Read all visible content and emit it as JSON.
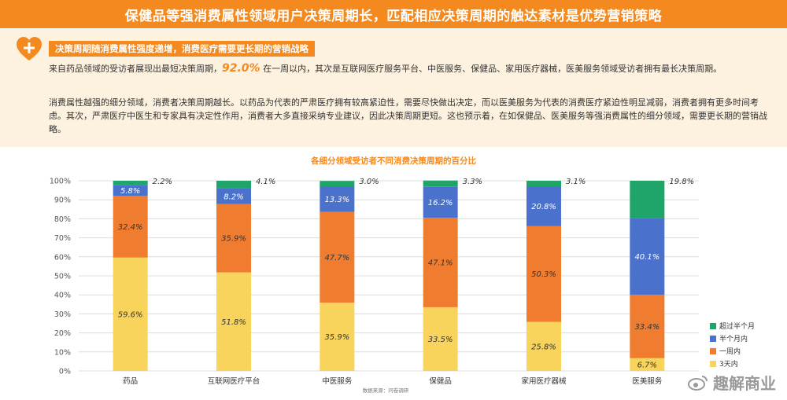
{
  "header": {
    "title": "保健品等强消费属性领域用户决策周期长，匹配相应决策周期的触达素材是优势营销策略"
  },
  "info": {
    "subtitle": "决策周期随消费属性强度递增，消费医疗需要更长期的营销战略",
    "p1_before": "来自药品领域的受访者展现出最短决策周期，",
    "p1_highlight": "92.0%",
    "p1_after": " 在一周以内，其次是互联网医疗服务平台、中医服务、保健品、家用医疗器械，医美服务领域受访者拥有最长决策周期。",
    "p2": "消费属性越强的细分领域，消费者决策周期越长。以药品为代表的严肃医疗拥有较高紧迫性，需要尽快做出决定，而以医美服务为代表的消费医疗紧迫性明显减弱，消费者拥有更多时间考虑。其次，严肃医疗中医生和专家具有决定性作用，消费者大多直接采纳专业建议，因此决策周期更短。这也预示着，在如保健品、医美服务等强消费属性的细分领域，需要更长期的营销战略。"
  },
  "footer": {
    "source": "数据来源：问卷调研",
    "watermark": "趣解商业"
  },
  "colors": {
    "brand": "#f48a1f",
    "s_3days": "#f9d45c",
    "s_week": "#ef7c2f",
    "s_halfmonth": "#4a72cc",
    "s_over": "#1fa56a"
  },
  "chart_data": {
    "type": "bar",
    "stacked": true,
    "title": "各细分领域受访者不同消费决策周期的百分比",
    "categories": [
      "药品",
      "互联网医疗平台",
      "中医服务",
      "保健品",
      "家用医疗器械",
      "医美服务"
    ],
    "series": [
      {
        "name": "3天内",
        "values": [
          59.6,
          51.8,
          35.9,
          33.5,
          25.8,
          6.7
        ]
      },
      {
        "name": "一周内",
        "values": [
          32.4,
          35.9,
          47.7,
          47.1,
          50.3,
          33.4
        ]
      },
      {
        "name": "半个月内",
        "values": [
          5.8,
          8.2,
          13.3,
          16.2,
          20.8,
          40.1
        ]
      },
      {
        "name": "超过半个月",
        "values": [
          2.2,
          4.1,
          3.0,
          3.3,
          3.1,
          19.8
        ]
      }
    ],
    "ylim": [
      0,
      100
    ],
    "y_ticks": [
      "0%",
      "10%",
      "20%",
      "30%",
      "40%",
      "50%",
      "60%",
      "70%",
      "80%",
      "90%",
      "100%"
    ],
    "grid": true,
    "legend": "right"
  }
}
